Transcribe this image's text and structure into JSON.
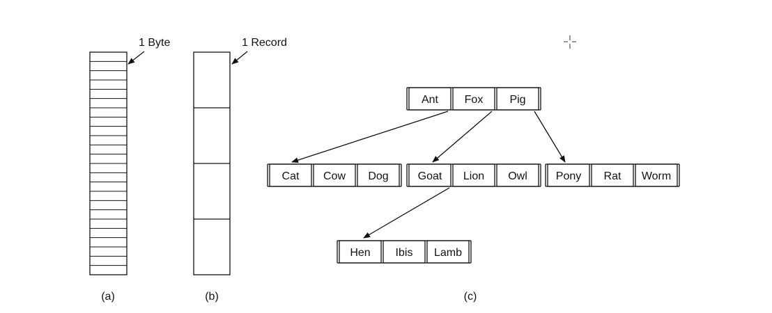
{
  "panel_a": {
    "caption": "(a)",
    "annotation": "1 Byte",
    "cell_count": 24
  },
  "panel_b": {
    "caption": "(b)",
    "annotation": "1 Record",
    "cell_count": 4
  },
  "panel_c": {
    "caption": "(c)",
    "root": [
      "Ant",
      "Fox",
      "Pig"
    ],
    "level1_left": [
      "Cat",
      "Cow",
      "Dog"
    ],
    "level1_mid": [
      "Goat",
      "Lion",
      "Owl"
    ],
    "level1_right": [
      "Pony",
      "Rat",
      "Worm"
    ],
    "level2": [
      "Hen",
      "Ibis",
      "Lamb"
    ]
  },
  "colors": {
    "stroke": "#111111",
    "background": "#ffffff"
  }
}
